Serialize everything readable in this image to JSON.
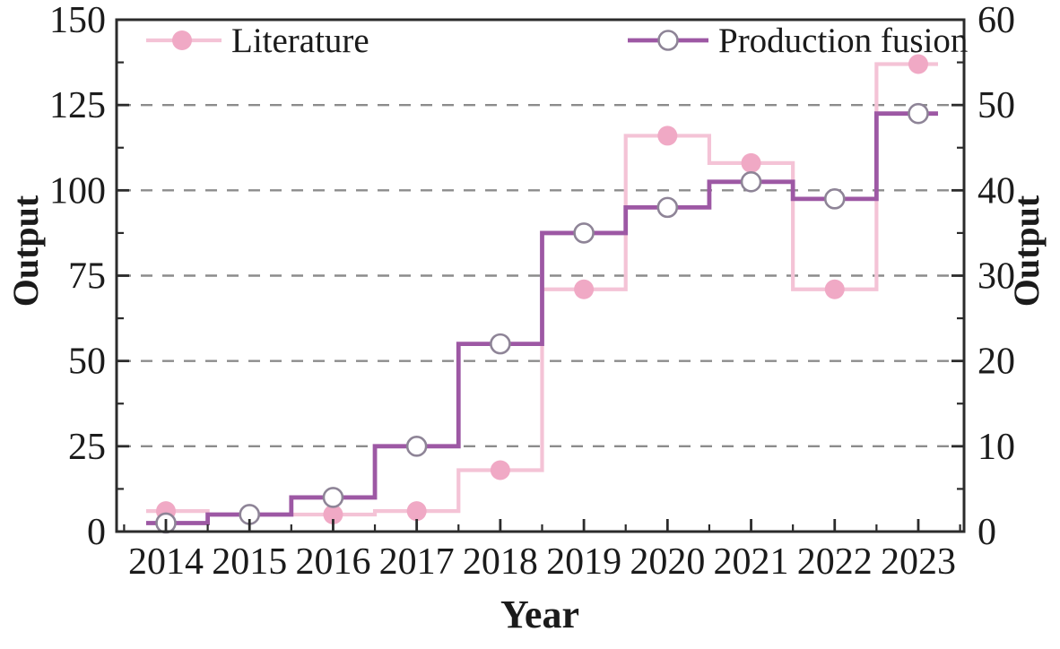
{
  "chart_data": {
    "type": "line",
    "line_style": "step-mid",
    "title": "",
    "xlabel": "Year",
    "ylabel_left": "Output",
    "ylabel_right": "Output",
    "categories": [
      "2014",
      "2015",
      "2016",
      "2017",
      "2018",
      "2019",
      "2020",
      "2021",
      "2022",
      "2023"
    ],
    "series": [
      {
        "name": "Literature",
        "axis": "left",
        "values": [
          6,
          5,
          5,
          6,
          18,
          71,
          116,
          108,
          71,
          137
        ],
        "line_color": "#f4c3d6",
        "marker": "filled-circle",
        "marker_color": "#f0a9c5"
      },
      {
        "name": "Production fusion",
        "axis": "right",
        "values": [
          1,
          2,
          4,
          10,
          22,
          35,
          38,
          41,
          39,
          49
        ],
        "line_color": "#9d58a4",
        "marker": "open-circle",
        "marker_fill": "#ffffff",
        "marker_edge_color": "#8e8497"
      }
    ],
    "left_axis": {
      "min": 0,
      "max": 150,
      "ticks": [
        0,
        25,
        50,
        75,
        100,
        125,
        150
      ],
      "minor_step": 12.5
    },
    "right_axis": {
      "min": 0,
      "max": 60,
      "ticks": [
        0,
        10,
        20,
        30,
        40,
        50,
        60
      ],
      "minor_step": 5
    },
    "grid": {
      "horizontal": true,
      "style": "dashed",
      "color": "#8c8c8c"
    },
    "legend": {
      "position": "top-inside",
      "entries": [
        "Literature",
        "Production fusion"
      ]
    },
    "colors": {
      "axis": "#2b2b2b",
      "text": "#1b1b1b",
      "background": "#ffffff"
    }
  }
}
